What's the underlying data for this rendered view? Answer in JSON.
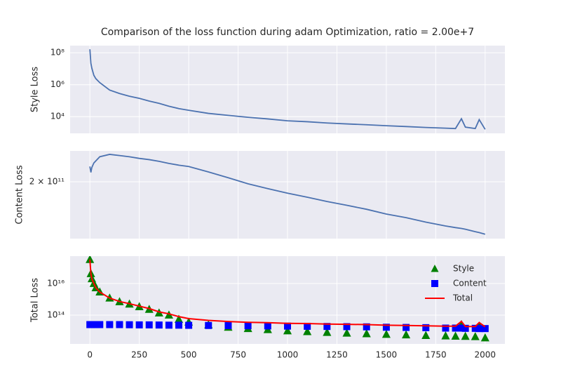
{
  "chart_data": [
    {
      "type": "line",
      "title": "Comparison of the loss function during adam Optimization, ratio = 2.00e+7",
      "ylabel": "Style Loss",
      "log_y": true,
      "grid": true,
      "xlim": [
        -100,
        2100
      ],
      "ylim": [
        900,
        280000000
      ],
      "yticks": [
        {
          "value": 10000,
          "label": "10⁴"
        },
        {
          "value": 1000000,
          "label": "10⁶"
        },
        {
          "value": 100000000,
          "label": "10⁸"
        }
      ],
      "x": [
        0,
        5,
        10,
        20,
        30,
        50,
        100,
        150,
        200,
        250,
        300,
        350,
        400,
        450,
        500,
        600,
        700,
        800,
        900,
        1000,
        1100,
        1200,
        1300,
        1400,
        1500,
        1600,
        1700,
        1800,
        1850,
        1880,
        1900,
        1950,
        1970,
        2000
      ],
      "series": [
        {
          "color": "#4c72b0",
          "marker": "line",
          "values": [
            166000000,
            22000000,
            10700000,
            3900000,
            2400000,
            1350000,
            460000,
            280000,
            190000,
            140000,
            95000,
            68000,
            45000,
            32000,
            25000,
            16000,
            12000,
            9100,
            7200,
            5500,
            4800,
            4000,
            3500,
            3100,
            2700,
            2400,
            2100,
            1900,
            1800,
            7400,
            2200,
            1800,
            6500,
            1600
          ]
        }
      ]
    },
    {
      "type": "line",
      "ylabel": "Content Loss",
      "log_y": true,
      "grid": true,
      "xlim": [
        -100,
        2100
      ],
      "ylim": [
        115000000000,
        270000000000
      ],
      "yticks": [
        {
          "value": 200000000000,
          "label": "2 × 10¹¹"
        }
      ],
      "x": [
        0,
        5,
        10,
        20,
        30,
        50,
        100,
        150,
        200,
        250,
        300,
        350,
        400,
        450,
        500,
        600,
        700,
        800,
        900,
        1000,
        1100,
        1200,
        1300,
        1400,
        1500,
        1600,
        1700,
        1800,
        1850,
        1880,
        1900,
        1950,
        1970,
        2000
      ],
      "series": [
        {
          "color": "#4c72b0",
          "marker": "line",
          "values": [
            232000000000,
            219000000000,
            230000000000,
            240000000000,
            245000000000,
            255000000000,
            261000000000,
            258000000000,
            255000000000,
            251000000000,
            248000000000,
            244000000000,
            239000000000,
            235000000000,
            232000000000,
            220000000000,
            208000000000,
            196000000000,
            187000000000,
            179000000000,
            172000000000,
            165000000000,
            159000000000,
            153000000000,
            146000000000,
            141000000000,
            135000000000,
            130000000000,
            128000000000,
            127000000000,
            126000000000,
            123000000000,
            122000000000,
            120000000000
          ]
        }
      ]
    },
    {
      "type": "line",
      "ylabel": "Total Loss",
      "log_y": true,
      "grid": true,
      "legend": "upper right",
      "xlim": [
        -100,
        2100
      ],
      "ylim": [
        1500000000000,
        540000000000000000
      ],
      "xticks": [
        0,
        250,
        500,
        750,
        1000,
        1250,
        1500,
        1750,
        2000
      ],
      "yticks": [
        {
          "value": 100000000000000,
          "label": "10¹⁴"
        },
        {
          "value": 10000000000000000,
          "label": "10¹⁶"
        }
      ],
      "x": [
        0,
        5,
        10,
        20,
        30,
        50,
        100,
        150,
        200,
        250,
        300,
        350,
        400,
        450,
        500,
        600,
        700,
        800,
        900,
        1000,
        1100,
        1200,
        1300,
        1400,
        1500,
        1600,
        1700,
        1800,
        1850,
        1880,
        1900,
        1950,
        1970,
        2000
      ],
      "series": [
        {
          "name": "Style",
          "color": "#008000",
          "marker": "triangle",
          "values": [
            330000000000000000,
            42000000000000000,
            20000000000000000,
            10000000000000000,
            5400000000000000,
            2900000000000000,
            1200000000000000,
            700000000000000,
            500000000000000,
            340000000000000,
            230000000000000,
            136000000000000,
            100000000000000,
            54000000000000,
            36000000000000,
            24000000000000,
            17000000000000,
            14000000000000,
            12000000000000,
            10000000000000,
            9000000000000,
            8000000000000,
            7200000000000,
            6600000000000,
            6000000000000,
            5600000000000,
            5100000000000,
            4800000000000,
            4600000000000,
            25000000000000,
            4500000000000,
            4300000000000,
            20000000000000,
            3600000000000
          ]
        },
        {
          "name": "Content",
          "color": "#0000ff",
          "marker": "square",
          "values": [
            25000000000000,
            25000000000000,
            25000000000000,
            25000000000000,
            25000000000000,
            25000000000000,
            25000000000000,
            25000000000000,
            24500000000000,
            24000000000000,
            24000000000000,
            23500000000000,
            23000000000000,
            23000000000000,
            22500000000000,
            22000000000000,
            21500000000000,
            21000000000000,
            20500000000000,
            20000000000000,
            19500000000000,
            19000000000000,
            18500000000000,
            18000000000000,
            17000000000000,
            16500000000000,
            16000000000000,
            15000000000000,
            15000000000000,
            15000000000000,
            14500000000000,
            14500000000000,
            14000000000000,
            14000000000000
          ]
        },
        {
          "name": "Total",
          "color": "#ff0000",
          "marker": "line",
          "values": [
            330000000000000000,
            42000000000000000,
            20000000000000000,
            10000000000000000,
            5400000000000000,
            2900000000000000,
            1200000000000000,
            730000000000000,
            530000000000000,
            370000000000000,
            260000000000000,
            160000000000000,
            120000000000000,
            80000000000000,
            60000000000000,
            46000000000000,
            39000000000000,
            35000000000000,
            33000000000000,
            30000000000000,
            29000000000000,
            27000000000000,
            26000000000000,
            25000000000000,
            23000000000000,
            22000000000000,
            21000000000000,
            20000000000000,
            20000000000000,
            40000000000000,
            19000000000000,
            19000000000000,
            34000000000000,
            18000000000000
          ]
        }
      ]
    }
  ]
}
